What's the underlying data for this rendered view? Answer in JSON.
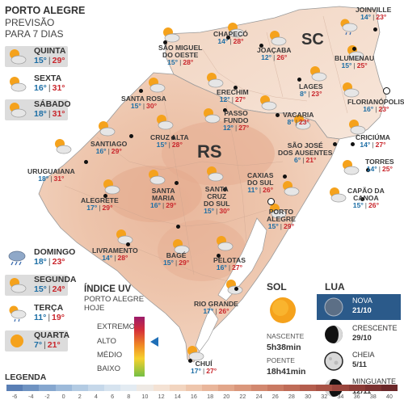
{
  "header": {
    "title": "PORTO ALEGRE",
    "sub1": "PREVISÃO",
    "sub2": "PARA 7 DIAS"
  },
  "days": [
    {
      "name": "QUINTA",
      "min": "15°",
      "max": "29°",
      "icon": "sun-cloud-icon"
    },
    {
      "name": "SEXTA",
      "min": "16°",
      "max": "31°",
      "icon": "sun-cloud-icon"
    },
    {
      "name": "SÁBADO",
      "min": "18°",
      "max": "31°",
      "icon": "sun-cloud-icon"
    },
    {
      "name": "DOMINGO",
      "min": "18°",
      "max": "23°",
      "icon": "rain-cloud-icon"
    },
    {
      "name": "SEGUNDA",
      "min": "15°",
      "max": "24°",
      "icon": "sun-cloud-icon"
    },
    {
      "name": "TERÇA",
      "min": "11°",
      "max": "19°",
      "icon": "sun-rain-icon"
    },
    {
      "name": "QUARTA",
      "min": "7°",
      "max": "21°",
      "icon": "sun-icon"
    }
  ],
  "states": {
    "rs": "RS",
    "sc": "SC"
  },
  "cities": [
    {
      "name": "SÃO MIGUEL\nDO OESTE",
      "min": "15°",
      "max": "28°"
    },
    {
      "name": "CHAPECÓ",
      "min": "14°",
      "max": "28°"
    },
    {
      "name": "JOAÇABA",
      "min": "12°",
      "max": "26°"
    },
    {
      "name": "JOINVILLE",
      "min": "14°",
      "max": "23°"
    },
    {
      "name": "BLUMENAU",
      "min": "15°",
      "max": "25°"
    },
    {
      "name": "LAGES",
      "min": "8°",
      "max": "23°"
    },
    {
      "name": "FLORIANÓPOLIS",
      "min": "16°",
      "max": "23°"
    },
    {
      "name": "SANTA ROSA",
      "min": "15°",
      "max": "30°"
    },
    {
      "name": "ERECHIM",
      "min": "12°",
      "max": "27°"
    },
    {
      "name": "VACARIA",
      "min": "8°",
      "max": "23°"
    },
    {
      "name": "PASSO\nFUNDO",
      "min": "12°",
      "max": "27°"
    },
    {
      "name": "CRUZ ALTA",
      "min": "15°",
      "max": "28°"
    },
    {
      "name": "SANTIAGO",
      "min": "16°",
      "max": "29°"
    },
    {
      "name": "SÃO JOSÉ\nDOS AUSENTES",
      "min": "6°",
      "max": "21°"
    },
    {
      "name": "CRICIÚMA",
      "min": "14°",
      "max": "27°"
    },
    {
      "name": "URUGUAIANA",
      "min": "18°",
      "max": "31°"
    },
    {
      "name": "TORRES",
      "min": "14°",
      "max": "25°"
    },
    {
      "name": "CAXIAS\nDO SUL",
      "min": "11°",
      "max": "26°"
    },
    {
      "name": "ALEGRETE",
      "min": "17°",
      "max": "29°"
    },
    {
      "name": "SANTA\nMARIA",
      "min": "16°",
      "max": "29°"
    },
    {
      "name": "SANTA\nCRUZ\nDO SUL",
      "min": "15°",
      "max": "30°"
    },
    {
      "name": "CAPÃO DA\nCANOA",
      "min": "15°",
      "max": "26°"
    },
    {
      "name": "PORTO\nALEGRE",
      "min": "15°",
      "max": "29°"
    },
    {
      "name": "LIVRAMENTO",
      "min": "14°",
      "max": "28°"
    },
    {
      "name": "BAGÉ",
      "min": "15°",
      "max": "29°"
    },
    {
      "name": "PELOTAS",
      "min": "16°",
      "max": "27°"
    },
    {
      "name": "RIO GRANDE",
      "min": "17°",
      "max": "26°"
    },
    {
      "name": "CHUÍ",
      "min": "17°",
      "max": "27°"
    }
  ],
  "uv": {
    "title": "ÍNDICE UV",
    "sub1": "PORTO ALEGRE",
    "sub2": "HOJE",
    "levels": [
      "EXTREMO",
      "ALTO",
      "MÉDIO",
      "BAIXO"
    ],
    "current": "ALTO"
  },
  "sol": {
    "title": "SOL",
    "rise_label": "NASCENTE",
    "rise": "5h38min",
    "set_label": "POENTE",
    "set": "18h41min"
  },
  "lua": {
    "title": "LUA",
    "phases": [
      {
        "name": "NOVA",
        "date": "21/10",
        "current": true
      },
      {
        "name": "CRESCENTE",
        "date": "29/10"
      },
      {
        "name": "CHEIA",
        "date": "5/11"
      },
      {
        "name": "MINGUANTE",
        "date": "12/11"
      }
    ]
  },
  "legend": {
    "title": "LEGENDA",
    "ticks": [
      "-6",
      "-4",
      "-2",
      "0",
      "2",
      "4",
      "6",
      "8",
      "10",
      "12",
      "14",
      "16",
      "18",
      "20",
      "22",
      "24",
      "26",
      "28",
      "30",
      "32",
      "34",
      "36",
      "38",
      "40"
    ],
    "colors": [
      "#5a7fb5",
      "#6f93c2",
      "#86a7cf",
      "#9dbada",
      "#b3cbe3",
      "#c6d8ea",
      "#d6e3ef",
      "#e3ebf2",
      "#eee9e4",
      "#f4e2d4",
      "#f2d5c0",
      "#eec6ad",
      "#e9b69b",
      "#e2a68a",
      "#da977c",
      "#d2886f",
      "#c97a63",
      "#bf6c58",
      "#b45e4e",
      "#a85245",
      "#9a463d",
      "#8b3b36",
      "#7b3130",
      "#6b282a"
    ]
  },
  "colors": {
    "temp_min": "#1d6ea5",
    "temp_max": "#c9262c",
    "uv_pointer": "#1f6fb7",
    "moon_highlight": "#2b5a8a"
  }
}
